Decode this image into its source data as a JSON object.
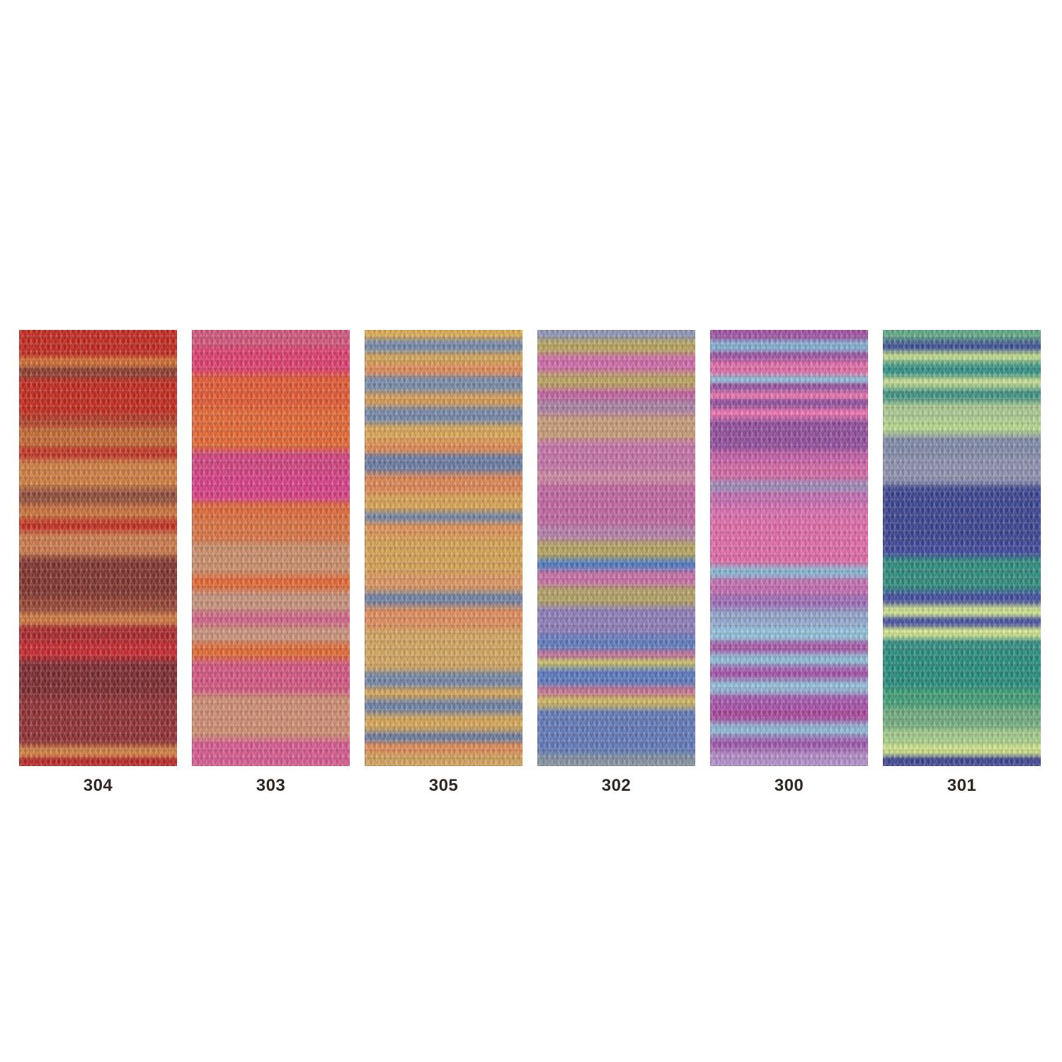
{
  "shade_card": {
    "background": "#ffffff",
    "label_color": "#302722",
    "swatches": [
      {
        "code": "304",
        "stripes": [
          [
            "#c0241b",
            40
          ],
          [
            "#d2702f",
            10
          ],
          [
            "#8a3a2a",
            18
          ],
          [
            "#c12519",
            52
          ],
          [
            "#b03a24",
            16
          ],
          [
            "#c2672f",
            30
          ],
          [
            "#bf2f1f",
            16
          ],
          [
            "#cd7a3c",
            42
          ],
          [
            "#8c4834",
            22
          ],
          [
            "#c86f38",
            22
          ],
          [
            "#c12a1c",
            16
          ],
          [
            "#c97747",
            36
          ],
          [
            "#7c2f28",
            58
          ],
          [
            "#93402e",
            22
          ],
          [
            "#cf7a3d",
            16
          ],
          [
            "#a62226",
            24
          ],
          [
            "#c32329",
            26
          ],
          [
            "#77252a",
            50
          ],
          [
            "#8c2b2e",
            72
          ],
          [
            "#d2803e",
            16
          ],
          [
            "#b32020",
            12
          ]
        ]
      },
      {
        "code": "303",
        "stripes": [
          [
            "#ce527a",
            24
          ],
          [
            "#dc3a6c",
            38
          ],
          [
            "#e0562f",
            48
          ],
          [
            "#e2642f",
            60
          ],
          [
            "#cf3f7c",
            32
          ],
          [
            "#d63a85",
            40
          ],
          [
            "#dd6534",
            24
          ],
          [
            "#d9713f",
            34
          ],
          [
            "#c98c68",
            46
          ],
          [
            "#e2642f",
            22
          ],
          [
            "#c59078",
            30
          ],
          [
            "#cf5f85",
            20
          ],
          [
            "#c9917a",
            24
          ],
          [
            "#e0662f",
            24
          ],
          [
            "#d2527f",
            48
          ],
          [
            "#cd8b70",
            64
          ],
          [
            "#d4568c",
            38
          ]
        ]
      },
      {
        "code": "305",
        "stripes": [
          [
            "#d9a94f",
            12
          ],
          [
            "#7087aa",
            20
          ],
          [
            "#d2a254",
            16
          ],
          [
            "#de8a55",
            16
          ],
          [
            "#7289a9",
            24
          ],
          [
            "#d69a50",
            20
          ],
          [
            "#6f85a6",
            24
          ],
          [
            "#d8a452",
            26
          ],
          [
            "#dd8850",
            16
          ],
          [
            "#66799f",
            28
          ],
          [
            "#db8450",
            30
          ],
          [
            "#d6a24f",
            26
          ],
          [
            "#6e82a2",
            12
          ],
          [
            "#dc9055",
            22
          ],
          [
            "#d4a050",
            50
          ],
          [
            "#d9945c",
            28
          ],
          [
            "#6a7fa2",
            20
          ],
          [
            "#dd8a58",
            32
          ],
          [
            "#d0a45c",
            60
          ],
          [
            "#6f83a4",
            24
          ],
          [
            "#d2a355",
            14
          ],
          [
            "#6a7fa2",
            22
          ],
          [
            "#d4a455",
            26
          ],
          [
            "#68799c",
            14
          ],
          [
            "#dd8853",
            16
          ],
          [
            "#cfa058",
            18
          ]
        ]
      },
      {
        "code": "302",
        "stripes": [
          [
            "#8a93b2",
            12
          ],
          [
            "#b5a35c",
            22
          ],
          [
            "#cc68a6",
            26
          ],
          [
            "#b8a05e",
            24
          ],
          [
            "#c05f9f",
            14
          ],
          [
            "#a87ea2",
            22
          ],
          [
            "#c69a76",
            36
          ],
          [
            "#c271a6",
            44
          ],
          [
            "#cb86a0",
            16
          ],
          [
            "#bf63a0",
            60
          ],
          [
            "#b27da8",
            22
          ],
          [
            "#b2a25e",
            26
          ],
          [
            "#4a79c0",
            14
          ],
          [
            "#c56ca4",
            24
          ],
          [
            "#b0a062",
            28
          ],
          [
            "#8a7ab8",
            40
          ],
          [
            "#5b79bd",
            24
          ],
          [
            "#bd6f95",
            10
          ],
          [
            "#c4bb68",
            12
          ],
          [
            "#5577be",
            28
          ],
          [
            "#c2708f",
            12
          ],
          [
            "#ccb45e",
            18
          ],
          [
            "#5c77b8",
            66
          ],
          [
            "#7f8f9e",
            16
          ]
        ]
      },
      {
        "code": "300",
        "stripes": [
          [
            "#9c4ea0",
            14
          ],
          [
            "#7fb3d4",
            17
          ],
          [
            "#9b51a2",
            11
          ],
          [
            "#e06aa8",
            24
          ],
          [
            "#8fbcd8",
            8
          ],
          [
            "#95519e",
            13
          ],
          [
            "#e471ad",
            10
          ],
          [
            "#8f4c9c",
            14
          ],
          [
            "#e96fae",
            13
          ],
          [
            "#8e4a9a",
            47
          ],
          [
            "#c25ba6",
            16
          ],
          [
            "#d265a5",
            27
          ],
          [
            "#9a8ab8",
            13
          ],
          [
            "#c06ab0",
            20
          ],
          [
            "#d86aae",
            20
          ],
          [
            "#e068a8",
            47
          ],
          [
            "#dd68a6",
            20
          ],
          [
            "#85b8d6",
            15
          ],
          [
            "#c06aae",
            25
          ],
          [
            "#9a6ab4",
            20
          ],
          [
            "#8fa4cc",
            24
          ],
          [
            "#8fc2dc",
            22
          ],
          [
            "#a452a4",
            16
          ],
          [
            "#8cbcd8",
            18
          ],
          [
            "#a050a8",
            20
          ],
          [
            "#90bedb",
            20
          ],
          [
            "#a352aa",
            20
          ],
          [
            "#a6449c",
            20
          ],
          [
            "#8cb8d8",
            20
          ],
          [
            "#9c55ac",
            20
          ],
          [
            "#b08cc8",
            22
          ]
        ]
      },
      {
        "code": "301",
        "stripes": [
          [
            "#5ba583",
            14
          ],
          [
            "#3a4f94",
            16
          ],
          [
            "#b8d98a",
            14
          ],
          [
            "#2e8f82",
            22
          ],
          [
            "#c0dc90",
            14
          ],
          [
            "#3a9080",
            20
          ],
          [
            "#a8c98e",
            26
          ],
          [
            "#b4d88c",
            20
          ],
          [
            "#7c88a8",
            30
          ],
          [
            "#8a8fae",
            40
          ],
          [
            "#35408e",
            80
          ],
          [
            "#3a449a",
            20
          ],
          [
            "#27897b",
            48
          ],
          [
            "#3c4a9c",
            20
          ],
          [
            "#cfe68e",
            16
          ],
          [
            "#424e9e",
            14
          ],
          [
            "#d2e88c",
            16
          ],
          [
            "#2b8a7e",
            16
          ],
          [
            "#1f8a7a",
            54
          ],
          [
            "#3a9c74",
            26
          ],
          [
            "#6cab7c",
            30
          ],
          [
            "#a0cc88",
            22
          ],
          [
            "#cde488",
            16
          ],
          [
            "#37418e",
            14
          ]
        ]
      }
    ]
  }
}
